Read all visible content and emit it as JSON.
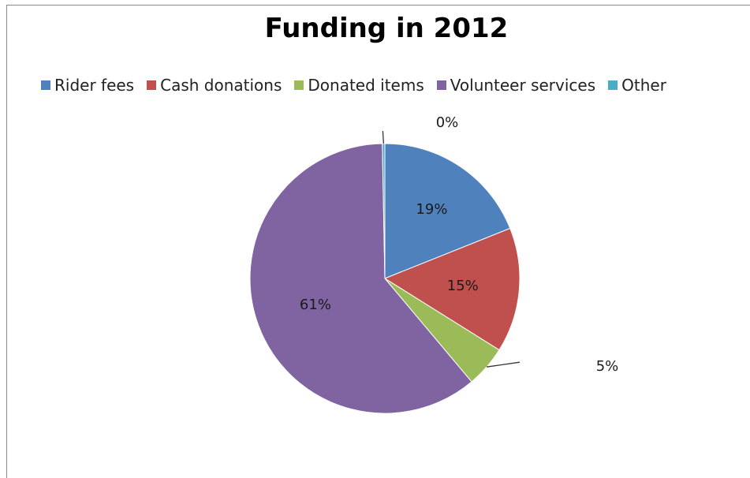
{
  "chart_data": {
    "type": "pie",
    "title": "Funding in 2012",
    "legend_position": "top",
    "series": [
      {
        "name": "Rider fees",
        "value": 19,
        "label": "19%",
        "color": "#4f81bd"
      },
      {
        "name": "Cash donations",
        "value": 15,
        "label": "15%",
        "color": "#c0504d"
      },
      {
        "name": "Donated items",
        "value": 5,
        "label": "5%",
        "color": "#9bbb59"
      },
      {
        "name": "Volunteer services",
        "value": 61,
        "label": "61%",
        "color": "#8064a2"
      },
      {
        "name": "Other",
        "value": 0.3,
        "label": "0%",
        "color": "#4bacc6"
      }
    ]
  }
}
